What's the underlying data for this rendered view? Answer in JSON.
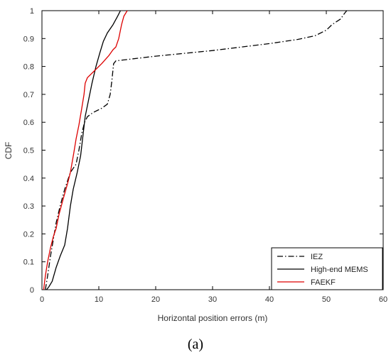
{
  "chart_data": {
    "type": "line",
    "xlabel": "Horizontal position errors (m)",
    "ylabel": "CDF",
    "xlim": [
      0,
      60
    ],
    "ylim": [
      0,
      1
    ],
    "x_ticks": [
      0,
      10,
      20,
      30,
      40,
      50,
      60
    ],
    "y_ticks": [
      0,
      0.1,
      0.2,
      0.3,
      0.4,
      0.5,
      0.6,
      0.7,
      0.8,
      0.9,
      1
    ],
    "grid": false,
    "legend_position": "bottom-right",
    "series": [
      {
        "name": "IEZ",
        "color": "#000000",
        "dash": "dash-dot",
        "points": [
          [
            0.6,
            0
          ],
          [
            1.0,
            0.05
          ],
          [
            1.5,
            0.12
          ],
          [
            2.0,
            0.18
          ],
          [
            2.5,
            0.24
          ],
          [
            3.2,
            0.3
          ],
          [
            4.0,
            0.36
          ],
          [
            5.0,
            0.42
          ],
          [
            6.0,
            0.45
          ],
          [
            6.5,
            0.5
          ],
          [
            7.0,
            0.56
          ],
          [
            7.5,
            0.6
          ],
          [
            8.0,
            0.62
          ],
          [
            9.0,
            0.635
          ],
          [
            10.5,
            0.65
          ],
          [
            11.5,
            0.665
          ],
          [
            12.0,
            0.7
          ],
          [
            12.3,
            0.75
          ],
          [
            12.6,
            0.81
          ],
          [
            13.0,
            0.82
          ],
          [
            20,
            0.837
          ],
          [
            30,
            0.857
          ],
          [
            40,
            0.882
          ],
          [
            45,
            0.897
          ],
          [
            48,
            0.91
          ],
          [
            50,
            0.93
          ],
          [
            51,
            0.95
          ],
          [
            52.5,
            0.97
          ],
          [
            53.2,
            0.99
          ],
          [
            53.6,
            1.0
          ]
        ]
      },
      {
        "name": "High-end MEMS",
        "color": "#000000",
        "dash": "solid",
        "points": [
          [
            0.8,
            0
          ],
          [
            1.2,
            0.01
          ],
          [
            1.8,
            0.03
          ],
          [
            2.5,
            0.08
          ],
          [
            3.2,
            0.12
          ],
          [
            4.0,
            0.16
          ],
          [
            4.5,
            0.22
          ],
          [
            5.0,
            0.3
          ],
          [
            5.5,
            0.36
          ],
          [
            6.2,
            0.42
          ],
          [
            6.8,
            0.48
          ],
          [
            7.2,
            0.55
          ],
          [
            7.6,
            0.62
          ],
          [
            8.2,
            0.68
          ],
          [
            8.8,
            0.74
          ],
          [
            9.5,
            0.8
          ],
          [
            10.2,
            0.85
          ],
          [
            10.8,
            0.89
          ],
          [
            11.5,
            0.92
          ],
          [
            12.5,
            0.95
          ],
          [
            13.3,
            0.98
          ],
          [
            13.8,
            1.0
          ]
        ]
      },
      {
        "name": "FAEKF",
        "color": "#dd0000",
        "dash": "solid",
        "points": [
          [
            0.3,
            0
          ],
          [
            0.6,
            0.05
          ],
          [
            1.0,
            0.1
          ],
          [
            1.5,
            0.15
          ],
          [
            2.0,
            0.19
          ],
          [
            2.5,
            0.22
          ],
          [
            3.0,
            0.27
          ],
          [
            3.8,
            0.33
          ],
          [
            4.5,
            0.38
          ],
          [
            5.0,
            0.42
          ],
          [
            5.6,
            0.49
          ],
          [
            6.0,
            0.54
          ],
          [
            6.5,
            0.59
          ],
          [
            7.0,
            0.65
          ],
          [
            7.4,
            0.7
          ],
          [
            7.6,
            0.74
          ],
          [
            8.0,
            0.76
          ],
          [
            9.0,
            0.78
          ],
          [
            10.5,
            0.81
          ],
          [
            11.8,
            0.84
          ],
          [
            12.5,
            0.86
          ],
          [
            13.0,
            0.87
          ],
          [
            13.5,
            0.9
          ],
          [
            14.0,
            0.95
          ],
          [
            14.4,
            0.98
          ],
          [
            15.0,
            1.0
          ]
        ]
      }
    ]
  },
  "caption": {
    "label": "(a)"
  }
}
